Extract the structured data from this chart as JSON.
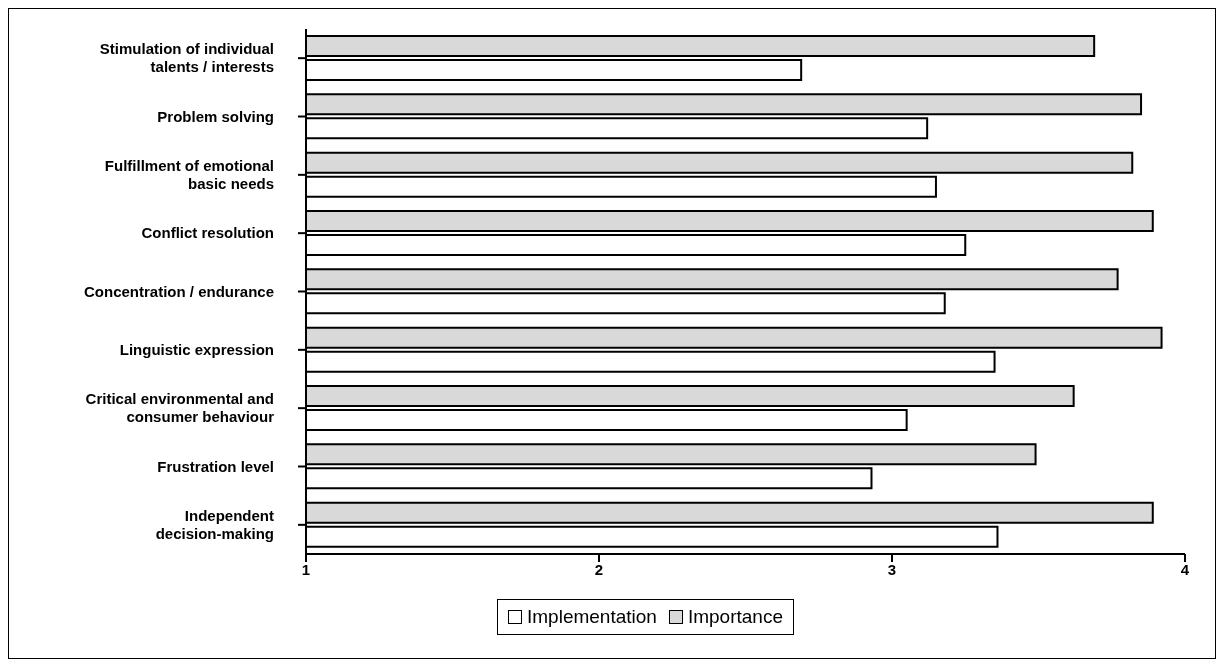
{
  "chart_data": {
    "type": "bar",
    "orientation": "horizontal",
    "categories": [
      "Stimulation of individual talents / interests",
      "Problem solving",
      "Fulfillment of emotional basic needs",
      "Conflict resolution",
      "Concentration / endurance",
      "Linguistic expression",
      "Critical environmental and consumer behaviour",
      "Frustration level",
      "Independent decision-making"
    ],
    "series": [
      {
        "name": "Implementation",
        "color": "#ffffff",
        "values": [
          2.69,
          3.12,
          3.15,
          3.25,
          3.18,
          3.35,
          3.05,
          2.93,
          3.36
        ]
      },
      {
        "name": "Importance",
        "color": "#d9d9d9",
        "values": [
          3.69,
          3.85,
          3.82,
          3.89,
          3.77,
          3.92,
          3.62,
          3.49,
          3.89
        ]
      }
    ],
    "xlim": [
      1,
      4
    ],
    "xticks": [
      1,
      2,
      3,
      4
    ],
    "grid": false,
    "legend": "bottom"
  }
}
